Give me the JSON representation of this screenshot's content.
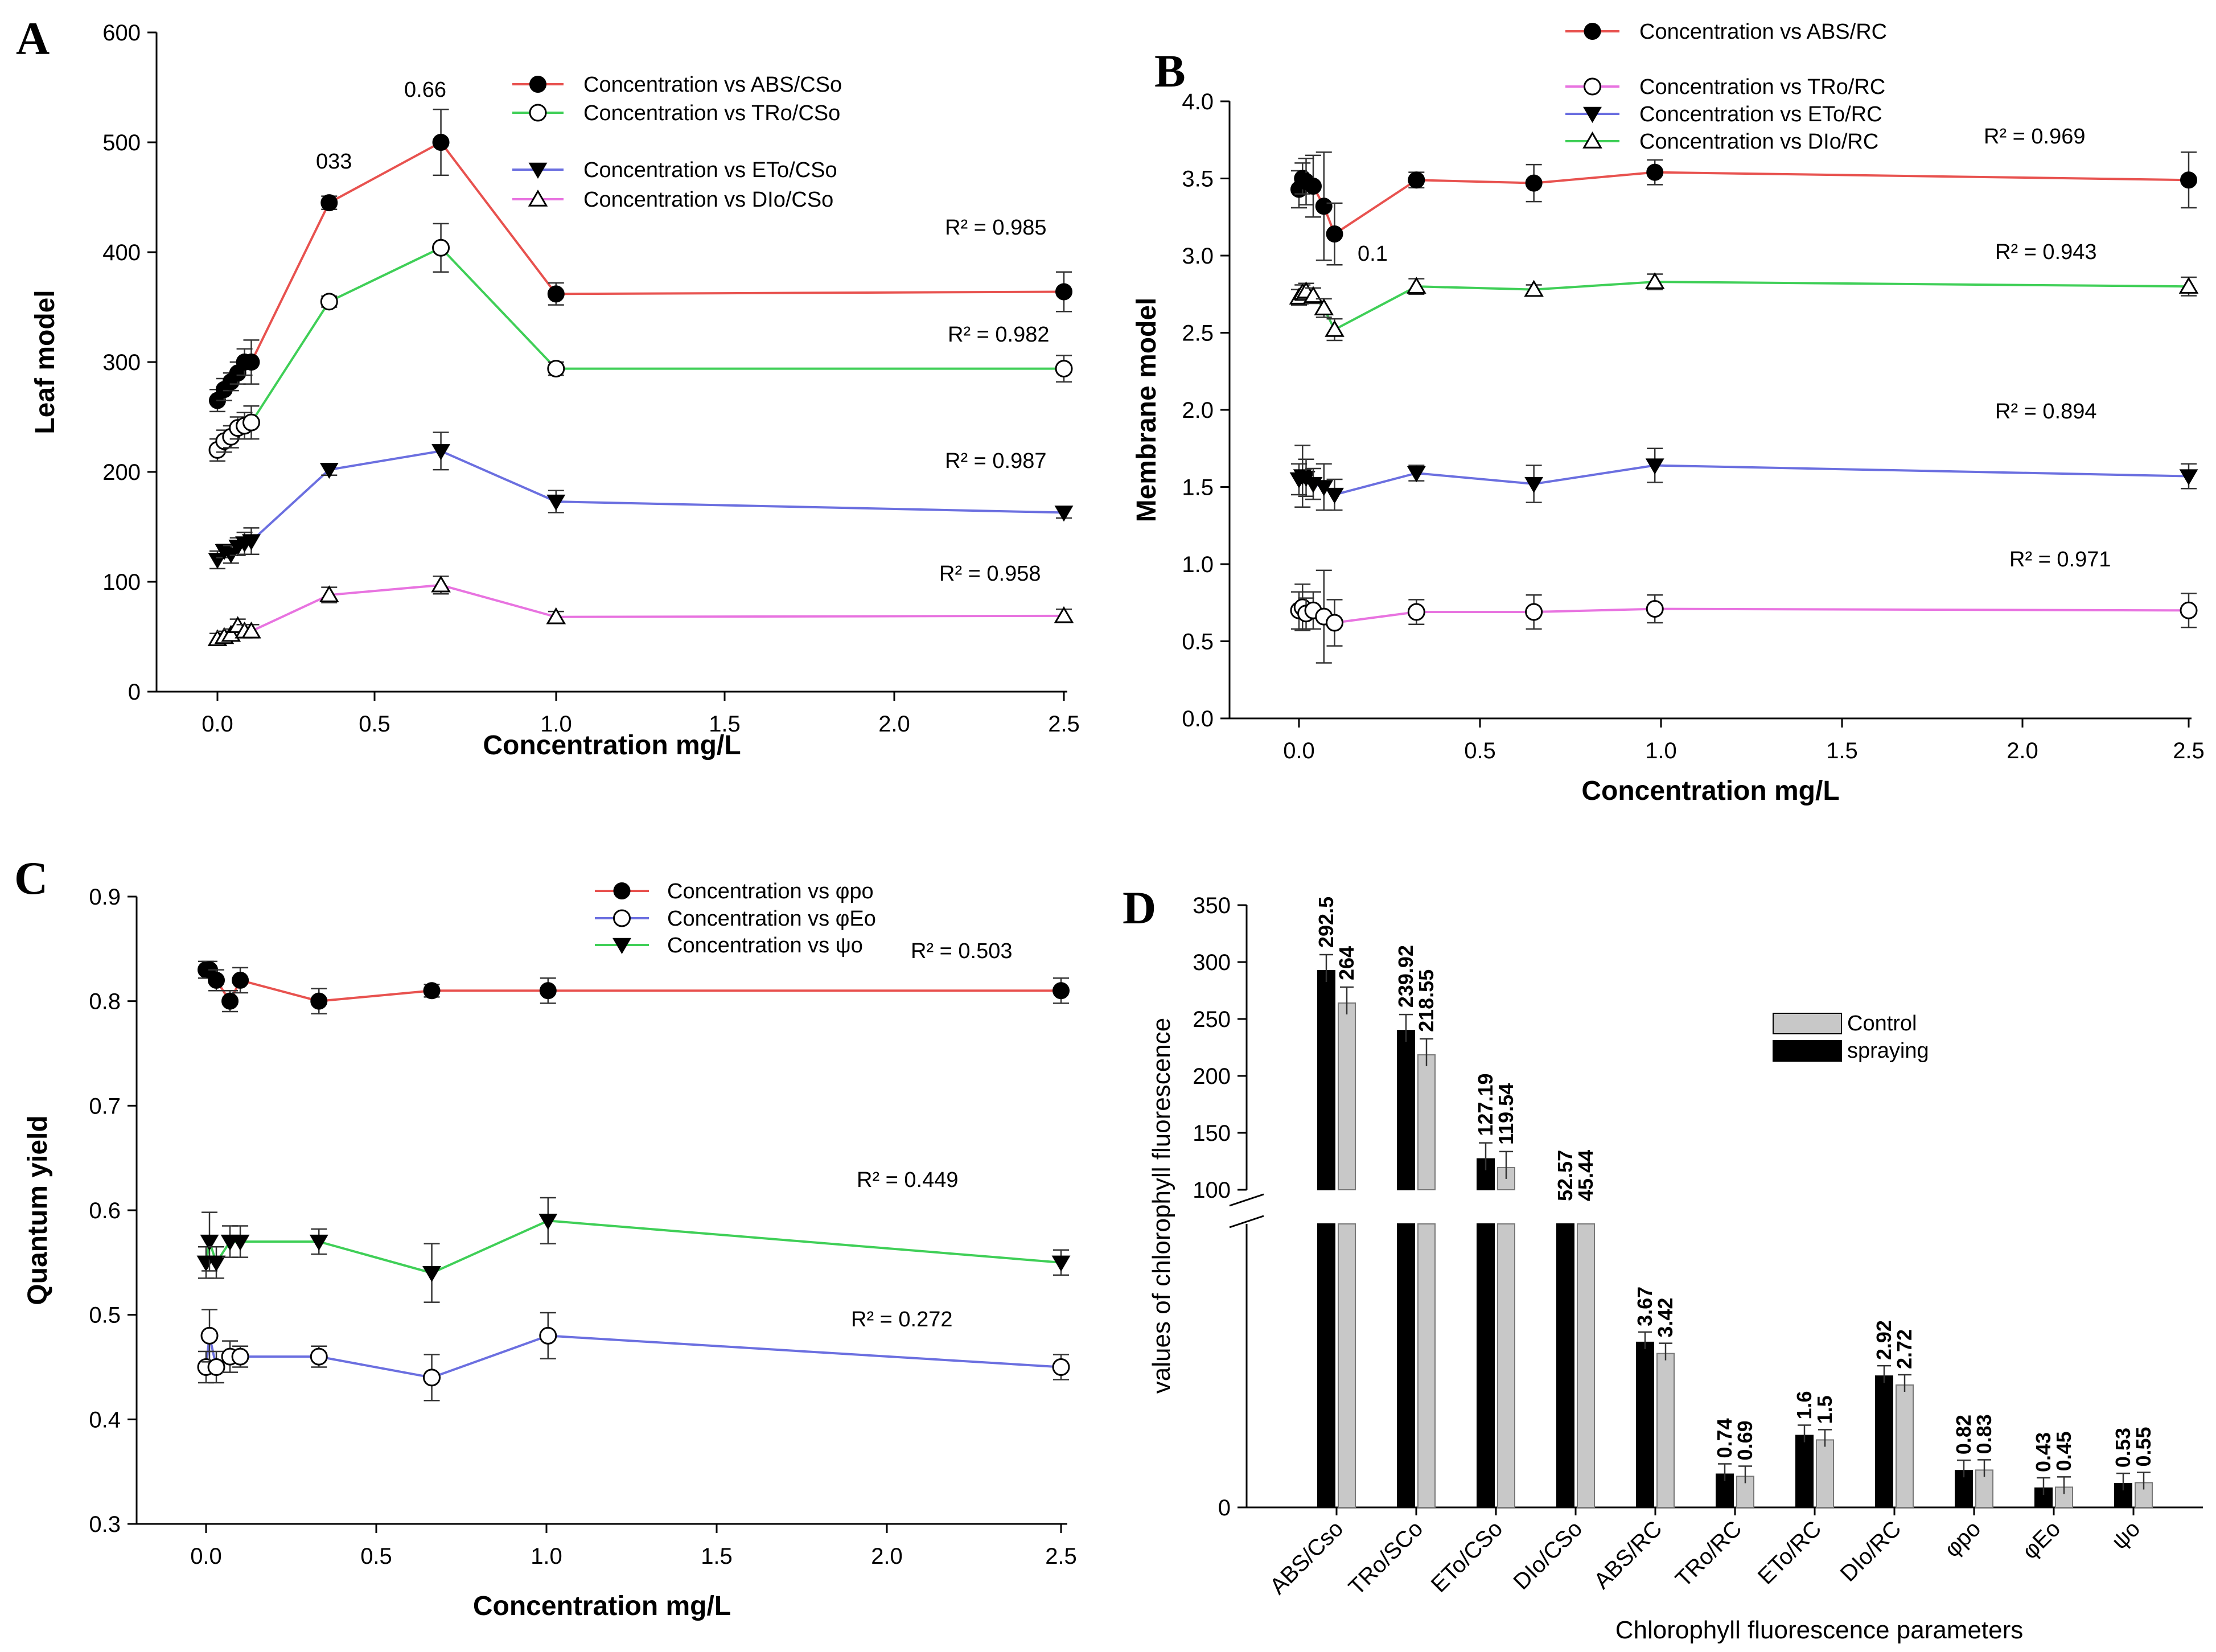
{
  "chart_data": [
    {
      "panel": "A",
      "type": "line",
      "xlabel": "Concentration mg/L",
      "ylabel": "Leaf model",
      "xlim": [
        -0.2,
        2.5
      ],
      "ylim": [
        0,
        600
      ],
      "xticks": [
        "0.0",
        "0.5",
        "1.0",
        "1.5",
        "2.0",
        "2.5"
      ],
      "yticks": [
        "0",
        "100",
        "200",
        "300",
        "400",
        "500",
        "600"
      ],
      "legend": "top-right",
      "annotations": [
        "033",
        "0.66"
      ],
      "series": [
        {
          "name": "Concentration vs ABS/CSo",
          "marker": "filled-circle",
          "color": "#e8524f",
          "x": [
            0.0,
            0.02,
            0.04,
            0.06,
            0.08,
            0.1,
            0.33,
            0.66,
            1.0,
            2.5
          ],
          "y": [
            265,
            275,
            282,
            290,
            300,
            300,
            445,
            500,
            362,
            364
          ],
          "err": [
            10,
            10,
            8,
            10,
            12,
            20,
            6,
            30,
            10,
            18
          ],
          "r2": "R² = 0.985"
        },
        {
          "name": "Concentration vs TRo/CSo",
          "marker": "open-circle",
          "color": "#3fcf57",
          "x": [
            0.0,
            0.02,
            0.04,
            0.06,
            0.08,
            0.1,
            0.33,
            0.66,
            1.0,
            2.5
          ],
          "y": [
            220,
            228,
            232,
            240,
            242,
            245,
            355,
            404,
            294,
            294
          ],
          "err": [
            10,
            10,
            10,
            10,
            12,
            15,
            5,
            22,
            6,
            12
          ],
          "r2": "R² = 0.982"
        },
        {
          "name": "Concentration vs ETo/CSo",
          "marker": "filled-triangle-down",
          "color": "#6b6fe0",
          "x": [
            0.0,
            0.02,
            0.04,
            0.06,
            0.08,
            0.1,
            0.33,
            0.66,
            1.0,
            2.5
          ],
          "y": [
            120,
            128,
            125,
            132,
            135,
            137,
            202,
            219,
            173,
            163
          ],
          "err": [
            8,
            6,
            8,
            8,
            10,
            12,
            5,
            17,
            10,
            5
          ],
          "r2": "R² = 0.987"
        },
        {
          "name": "Concentration vs DIo/CSo",
          "marker": "open-triangle-up",
          "color": "#e873e0",
          "x": [
            0.0,
            0.02,
            0.04,
            0.06,
            0.08,
            0.1,
            0.33,
            0.66,
            1.0,
            2.5
          ],
          "y": [
            48,
            50,
            52,
            60,
            55,
            55,
            88,
            97,
            68,
            69
          ],
          "err": [
            5,
            5,
            5,
            6,
            6,
            6,
            7,
            8,
            5,
            6
          ],
          "r2": "R² = 0.958"
        }
      ]
    },
    {
      "panel": "B",
      "type": "line",
      "xlabel": "Concentration mg/L",
      "ylabel": "Membrane model",
      "xlim": [
        -0.2,
        2.5
      ],
      "ylim": [
        0.0,
        4.0
      ],
      "xticks": [
        "0.0",
        "0.5",
        "1.0",
        "1.5",
        "2.0",
        "2.5"
      ],
      "yticks": [
        "0.0",
        "0.5",
        "1.0",
        "1.5",
        "2.0",
        "2.5",
        "3.0",
        "3.5",
        "4.0"
      ],
      "legend": "top-right",
      "annotations": [
        "0.1"
      ],
      "series": [
        {
          "name": "Concentration vs ABS/RC",
          "marker": "filled-circle",
          "color": "#e8524f",
          "x": [
            0.0,
            0.01,
            0.02,
            0.04,
            0.07,
            0.1,
            0.33,
            0.66,
            1.0,
            2.5
          ],
          "y": [
            3.43,
            3.5,
            3.48,
            3.45,
            3.32,
            3.14,
            3.49,
            3.47,
            3.54,
            3.49
          ],
          "err": [
            0.12,
            0.1,
            0.15,
            0.2,
            0.35,
            0.2,
            0.05,
            0.12,
            0.08,
            0.18
          ],
          "r2": "R² = 0.969"
        },
        {
          "name": "Concentration vs TRo/RC",
          "marker": "open-circle",
          "color": "#e873e0",
          "x": [
            0.0,
            0.01,
            0.02,
            0.04,
            0.07,
            0.1,
            0.33,
            0.66,
            1.0,
            2.5
          ],
          "y": [
            0.7,
            0.72,
            0.68,
            0.7,
            0.66,
            0.62,
            0.69,
            0.69,
            0.71,
            0.7
          ],
          "err": [
            0.12,
            0.15,
            0.1,
            0.12,
            0.3,
            0.15,
            0.08,
            0.11,
            0.09,
            0.11
          ],
          "r2": "R² = 0.943"
        },
        {
          "name": "Concentration vs  ETo/RC",
          "marker": "filled-triangle-down",
          "color": "#6b6fe0",
          "x": [
            0.0,
            0.01,
            0.02,
            0.04,
            0.07,
            0.1,
            0.33,
            0.66,
            1.0,
            2.5
          ],
          "y": [
            1.55,
            1.57,
            1.56,
            1.52,
            1.5,
            1.45,
            1.59,
            1.52,
            1.64,
            1.57
          ],
          "err": [
            0.1,
            0.2,
            0.12,
            0.1,
            0.15,
            0.1,
            0.05,
            0.12,
            0.11,
            0.08
          ],
          "r2": "R² = 0.894"
        },
        {
          "name": "Concentration vs DIo/RC",
          "marker": "open-triangle-up",
          "color": "#3fcf57",
          "x": [
            0.0,
            0.01,
            0.02,
            0.04,
            0.07,
            0.1,
            0.33,
            0.66,
            1.0,
            2.5
          ],
          "y": [
            2.73,
            2.76,
            2.77,
            2.74,
            2.66,
            2.52,
            2.8,
            2.78,
            2.83,
            2.8
          ],
          "err": [
            0.05,
            0.05,
            0.05,
            0.05,
            0.06,
            0.07,
            0.05,
            0.03,
            0.05,
            0.06
          ],
          "r2": "R² = 0.971"
        }
      ]
    },
    {
      "panel": "C",
      "type": "line",
      "xlabel": "Concentration mg/L",
      "ylabel": "Quantum yield",
      "xlim": [
        -0.2,
        2.5
      ],
      "ylim": [
        0.3,
        0.9
      ],
      "xticks": [
        "0.0",
        "0.5",
        "1.0",
        "1.5",
        "2.0",
        "2.5"
      ],
      "yticks": [
        "0.3",
        "0.4",
        "0.5",
        "0.6",
        "0.7",
        "0.8",
        "0.9"
      ],
      "legend": "top-right",
      "annotations": [],
      "series": [
        {
          "name": "Concentration vs φpo",
          "marker": "filled-circle",
          "color": "#e8524f",
          "x": [
            0.0,
            0.01,
            0.03,
            0.07,
            0.1,
            0.33,
            0.66,
            1.0,
            2.5
          ],
          "y": [
            0.83,
            0.83,
            0.82,
            0.8,
            0.82,
            0.8,
            0.81,
            0.81,
            0.81
          ],
          "err": [
            0.008,
            0.008,
            0.01,
            0.01,
            0.012,
            0.012,
            0.006,
            0.012,
            0.012
          ],
          "r2": "R² = 0.503"
        },
        {
          "name": "Concentration vs φEo",
          "marker": "open-circle",
          "color": "#6b6fe0",
          "x": [
            0.0,
            0.01,
            0.03,
            0.07,
            0.1,
            0.33,
            0.66,
            1.0,
            2.5
          ],
          "y": [
            0.45,
            0.48,
            0.45,
            0.46,
            0.46,
            0.46,
            0.44,
            0.48,
            0.45
          ],
          "err": [
            0.015,
            0.025,
            0.015,
            0.015,
            0.01,
            0.01,
            0.022,
            0.022,
            0.012
          ],
          "r2": "R² = 0.449"
        },
        {
          "name": "Concentration vs ψo",
          "marker": "filled-triangle-down",
          "color": "#3fcf57",
          "x": [
            0.0,
            0.01,
            0.03,
            0.07,
            0.1,
            0.33,
            0.66,
            1.0,
            2.5
          ],
          "y": [
            0.55,
            0.57,
            0.55,
            0.57,
            0.57,
            0.57,
            0.54,
            0.59,
            0.55
          ],
          "err": [
            0.015,
            0.028,
            0.015,
            0.015,
            0.015,
            0.012,
            0.028,
            0.022,
            0.012
          ],
          "r2": "R² = 0.272"
        }
      ]
    },
    {
      "panel": "D",
      "type": "bar",
      "xlabel": "Chlorophyll fluorescence parameters",
      "ylabel": "values of chlorophyll fluorescence",
      "categories": [
        "ABS/Cso",
        "TRo/SCo",
        "ETo/CSo",
        "DIo/CSo",
        "ABS/RC",
        "TRo/RC",
        "ETo/RC",
        "DIo/RC",
        "φpo",
        "φEo",
        "ψo"
      ],
      "upper_ylim": [
        100,
        350
      ],
      "upper_yticks": [
        "100",
        "150",
        "200",
        "250",
        "300",
        "350"
      ],
      "lower_yticks": [
        "0"
      ],
      "legend": "center-right",
      "series": [
        {
          "name": "spraying",
          "color": "#000000",
          "values": [
            292.5,
            239.92,
            127.19,
            52.57,
            3.67,
            0.74,
            1.6,
            2.92,
            0.82,
            0.43,
            0.53
          ],
          "labels": [
            "292.5",
            "239.92",
            "127.19",
            "52.57",
            "3.67",
            "0.74",
            "1.6",
            "2.92",
            "0.82",
            "0.43",
            "0.53"
          ]
        },
        {
          "name": "Control",
          "color": "#c8c8c8",
          "values": [
            264,
            218.55,
            119.54,
            45.44,
            3.42,
            0.69,
            1.5,
            2.72,
            0.83,
            0.45,
            0.55
          ],
          "labels": [
            "264",
            "218.55",
            "119.54",
            "45.44",
            "3.42",
            "0.69",
            "1.5",
            "2.72",
            "0.83",
            "0.45",
            "0.55"
          ]
        }
      ]
    }
  ]
}
